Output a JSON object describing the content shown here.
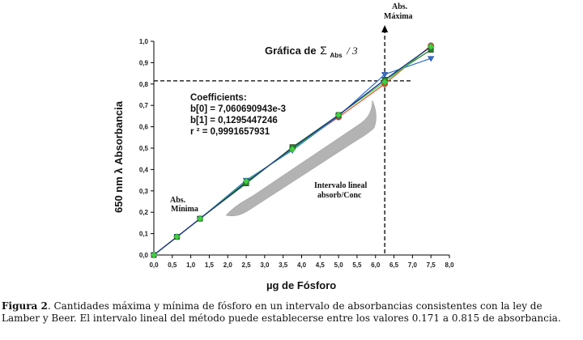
{
  "chart_data": {
    "type": "line",
    "title_prefix": "Gráfica de",
    "title_sigma": "Σ",
    "title_subscript": "Abs",
    "title_suffix": "/ 3",
    "xlabel": "µg de Fósforo",
    "ylabel": "650 nm λ Absorbancia",
    "xlim": [
      0,
      8
    ],
    "ylim": [
      0,
      1
    ],
    "x_ticks": [
      "0,0",
      "0,5",
      "1,0",
      "1,5",
      "2,0",
      "2,5",
      "3,0",
      "3,5",
      "4,0",
      "4,5",
      "5,0",
      "5,5",
      "6,0",
      "6,5",
      "7,0",
      "7,5",
      "8,0"
    ],
    "y_ticks": [
      "0,0",
      "0,1",
      "0,2",
      "0,3",
      "0,4",
      "0,5",
      "0,6",
      "0,7",
      "0,8",
      "0,9",
      "1,0"
    ],
    "x": [
      0,
      0.625,
      1.25,
      2.5,
      3.75,
      5.0,
      6.25,
      7.5
    ],
    "series": [
      {
        "color": "#e0502a",
        "marker": "circle",
        "values": [
          0.0,
          0.085,
          0.17,
          0.34,
          0.5,
          0.645,
          0.8,
          0.98
        ]
      },
      {
        "color": "#2a7d2a",
        "marker": "square",
        "values": [
          0.0,
          0.085,
          0.17,
          0.335,
          0.505,
          0.655,
          0.82,
          0.96
        ]
      },
      {
        "color": "#2f6fd1",
        "marker": "triangle",
        "values": [
          0.0,
          0.085,
          0.17,
          0.35,
          0.49,
          0.65,
          0.845,
          0.92
        ]
      },
      {
        "color": "#3fcf3f",
        "marker": "diamond",
        "values": [
          0.0,
          0.085,
          0.17,
          0.345,
          0.495,
          0.655,
          0.81,
          0.975
        ]
      },
      {
        "color": "#1e2a8c",
        "marker": "none",
        "values": [
          0.0,
          0.085,
          0.17,
          0.34,
          0.5,
          0.655,
          0.82,
          0.975
        ]
      }
    ],
    "regression": {
      "b0": 0.007060690943,
      "b1": 0.1295447246
    },
    "abs_max": {
      "x": 6.25,
      "y": 0.815
    },
    "annotations": {
      "coef_title": "Coefficients:",
      "b0": "b[0] = 7,060690943e-3",
      "b1": "b[1] = 0,1295447246",
      "r2": "r ² = 0,9991657931",
      "abs_max_1": "Abs.",
      "abs_max_2": "Máxima",
      "abs_min_1": "Abs.",
      "abs_min_2": "Mínima",
      "interval_1": "Intervalo lineal",
      "interval_2": "absorb/Conc"
    }
  },
  "caption": {
    "label": "Figura 2",
    "text": ". Cantidades máxima y mínima de fósforo en un intervalo de absorbancias consistentes con la ley de Lamber y Beer. El intervalo lineal del método puede establecerse entre los valores 0.171 a 0.815 de absorbancia."
  }
}
